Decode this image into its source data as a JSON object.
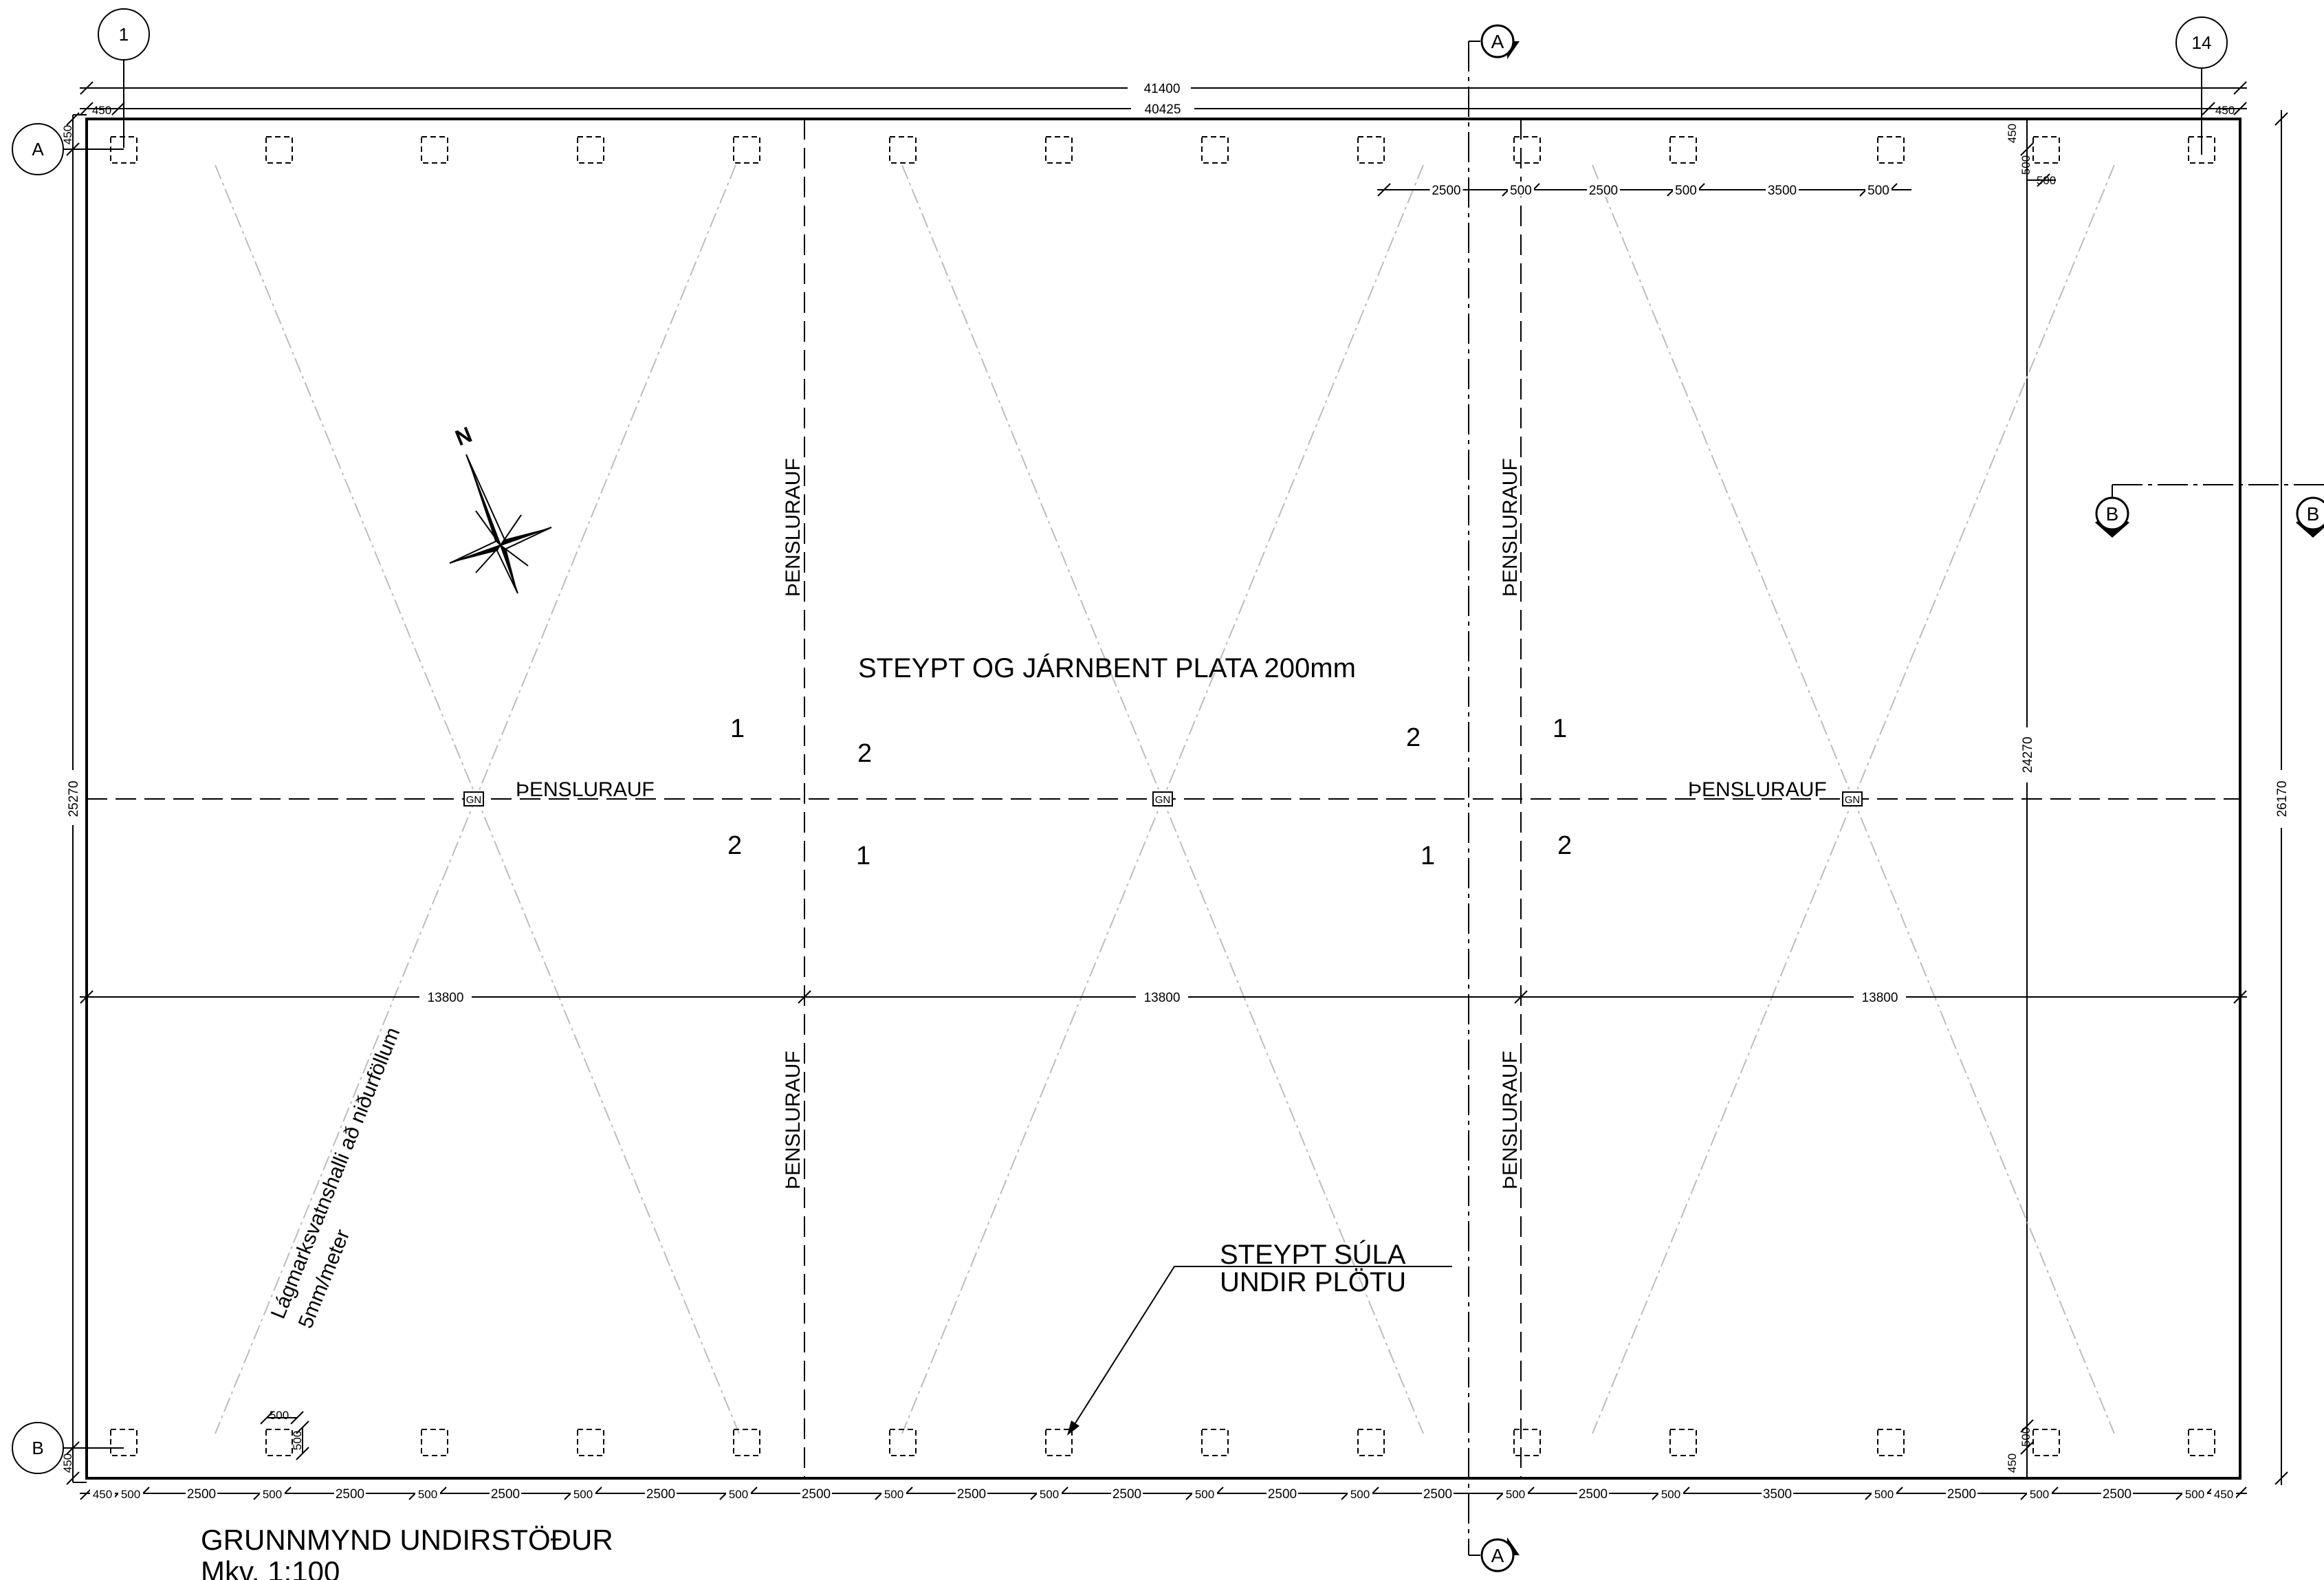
{
  "grid_labels": {
    "left_top": "1",
    "right_top": "14",
    "row_top": "A",
    "row_bottom": "B"
  },
  "section_marks": {
    "a_top": "A",
    "a_bottom": "A",
    "b_left": "B",
    "b_right": "B"
  },
  "dimensions": {
    "overall_outer": "41400",
    "overall_inner": "40425",
    "edge_left_top": "450",
    "edge_right_top": "450",
    "left_height_total": "25270",
    "left_edge_top": "450",
    "left_edge_bottom": "450",
    "right_height_total": "26170",
    "right_height_inner": "24270",
    "right_col_top": [
      "450",
      "500",
      "500"
    ],
    "right_col_bottom": [
      "450",
      "500"
    ],
    "mid_span": "13800",
    "top_detail": [
      "2500",
      "500",
      "2500",
      "500",
      "3500",
      "500"
    ],
    "bottom_chain": [
      "450",
      "500",
      "2500",
      "500",
      "2500",
      "500",
      "2500",
      "500",
      "2500",
      "500",
      "2500",
      "500",
      "2500",
      "500",
      "2500",
      "500",
      "2500",
      "500",
      "2500",
      "500",
      "2500",
      "500",
      "3500",
      "500",
      "2500",
      "500",
      "2500",
      "500",
      "450"
    ],
    "small_col": [
      "500",
      "500"
    ]
  },
  "labels": {
    "slab": "STEYPT OG JÁRNBENT PLATA 200mm",
    "joint": "ÞENSLURAUF",
    "drain": "GN",
    "slope_line1": "Lágmarksvatnshalli að niðurföllum",
    "slope_line2": "5mm/meter",
    "column_line1": "STEYPT SÚLA",
    "column_line2": "UNDIR PLÖTU",
    "north": "N",
    "one": "1",
    "two": "2"
  },
  "title_block": {
    "title": "GRUNNMYND UNDIRSTÖÐUR",
    "scale": "Mkv. 1:100"
  }
}
